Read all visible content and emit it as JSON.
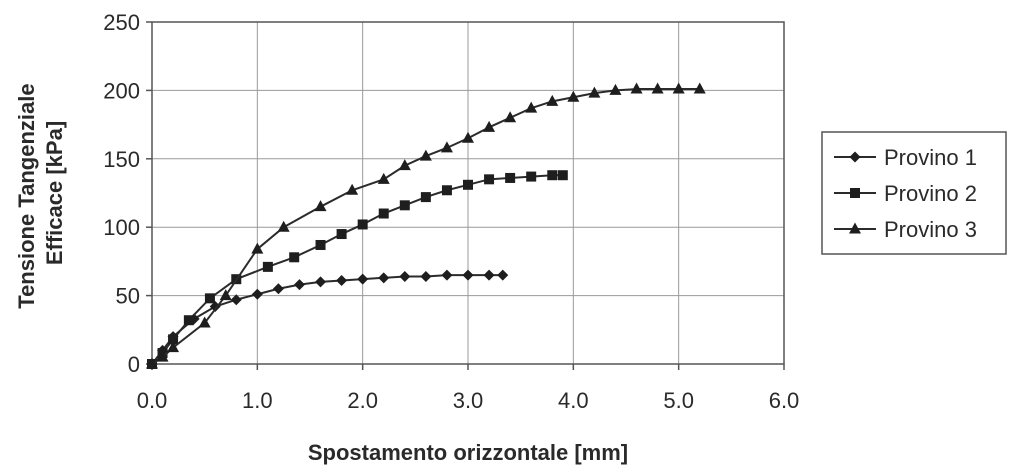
{
  "chart_data": {
    "type": "line",
    "title": "",
    "xlabel": "Spostamento orizzontale [mm]",
    "ylabel_lines": [
      "Tensione Tangenziale",
      "Efficace [kPa]"
    ],
    "xlim": [
      0,
      6
    ],
    "ylim": [
      0,
      250
    ],
    "x_ticks": [
      0,
      1,
      2,
      3,
      4,
      5,
      6
    ],
    "x_tick_labels": [
      "0.0",
      "1.0",
      "2.0",
      "3.0",
      "4.0",
      "5.0",
      "6.0"
    ],
    "y_ticks": [
      0,
      50,
      100,
      150,
      200,
      250
    ],
    "y_tick_labels": [
      "0",
      "50",
      "100",
      "150",
      "200",
      "250"
    ],
    "grid": true,
    "legend_position": "right",
    "series": [
      {
        "name": "Provino 1",
        "marker": "diamond",
        "x": [
          0,
          0.1,
          0.2,
          0.4,
          0.6,
          0.8,
          1.0,
          1.2,
          1.4,
          1.6,
          1.8,
          2.0,
          2.2,
          2.4,
          2.6,
          2.8,
          3.0,
          3.2,
          3.33
        ],
        "y": [
          0,
          10,
          20,
          33,
          42,
          47,
          51,
          55,
          58,
          60,
          61,
          62,
          63,
          64,
          64,
          65,
          65,
          65,
          65
        ]
      },
      {
        "name": "Provino 2",
        "marker": "square",
        "x": [
          0,
          0.1,
          0.2,
          0.35,
          0.55,
          0.8,
          1.1,
          1.35,
          1.6,
          1.8,
          2.0,
          2.2,
          2.4,
          2.6,
          2.8,
          3.0,
          3.2,
          3.4,
          3.6,
          3.8,
          3.9
        ],
        "y": [
          0,
          8,
          18,
          32,
          48,
          62,
          71,
          78,
          87,
          95,
          102,
          110,
          116,
          122,
          127,
          131,
          135,
          136,
          137,
          138,
          138
        ]
      },
      {
        "name": "Provino 3",
        "marker": "triangle",
        "x": [
          0,
          0.1,
          0.2,
          0.5,
          0.7,
          1.0,
          1.25,
          1.6,
          1.9,
          2.2,
          2.4,
          2.6,
          2.8,
          3.0,
          3.2,
          3.4,
          3.6,
          3.8,
          4.0,
          4.2,
          4.4,
          4.6,
          4.8,
          5.0,
          5.2
        ],
        "y": [
          0,
          5,
          12,
          30,
          50,
          84,
          100,
          115,
          127,
          135,
          145,
          152,
          158,
          165,
          173,
          180,
          187,
          192,
          195,
          198,
          200,
          201,
          201,
          201,
          201
        ]
      }
    ]
  }
}
